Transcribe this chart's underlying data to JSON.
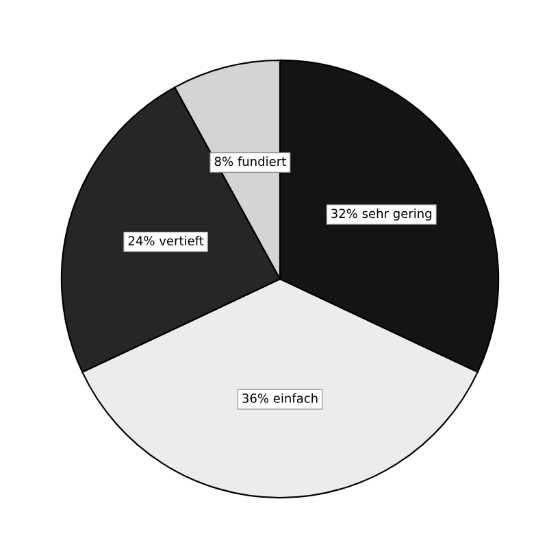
{
  "chart_data": {
    "type": "pie",
    "categories": [
      "32% sehr gering",
      "36% einfach",
      "24% vertieft",
      "8% fundiert"
    ],
    "values": [
      32,
      36,
      24,
      8
    ],
    "colors": [
      "#141414",
      "#ececec",
      "#262626",
      "#d4d4d4"
    ]
  }
}
